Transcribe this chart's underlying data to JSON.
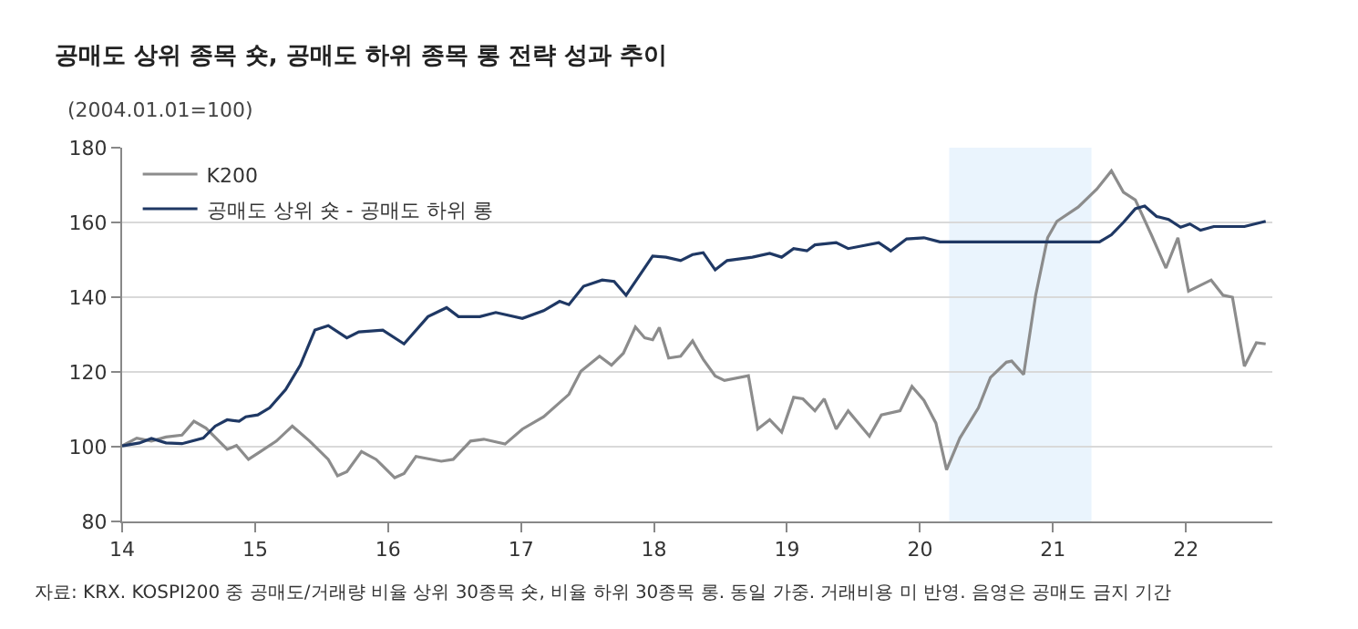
{
  "chart_data": {
    "type": "line",
    "title": "공매도 상위 종목 숏, 공매도 하위 종목 롱 전략 성과 추이",
    "subtitle": "(2004.01.01=100)",
    "annotations": [
      "자료: KRX. KOSPI200 중 공매도/거래량 비율 상위 30종목 숏, 비율 하위 30종목 롱. 동일 가중. 거래비용 미 반영. 음영은 공매도 금지 기간"
    ],
    "series": [
      {
        "name": "K200",
        "color": "#8c8c8c",
        "x": [
          14.0,
          14.11,
          14.22,
          14.33,
          14.45,
          14.54,
          14.63,
          14.79,
          14.86,
          14.95,
          15.04,
          15.16,
          15.28,
          15.41,
          15.55,
          15.62,
          15.69,
          15.8,
          15.91,
          16.05,
          16.12,
          16.21,
          16.4,
          16.49,
          16.62,
          16.72,
          16.88,
          17.01,
          17.17,
          17.36,
          17.45,
          17.59,
          17.68,
          17.77,
          17.86,
          17.93,
          17.99,
          18.04,
          18.11,
          18.2,
          18.29,
          18.37,
          18.46,
          18.53,
          18.71,
          18.78,
          18.87,
          18.96,
          19.05,
          19.12,
          19.21,
          19.28,
          19.37,
          19.46,
          19.62,
          19.71,
          19.85,
          19.94,
          20.03,
          20.12,
          20.2,
          20.3,
          20.44,
          20.53,
          20.65,
          20.69,
          20.78,
          20.87,
          20.96,
          21.03,
          21.19,
          21.33,
          21.44,
          21.53,
          21.62,
          21.74,
          21.85,
          21.94,
          22.02,
          22.19,
          22.28,
          22.35,
          22.44,
          22.53,
          22.6
        ],
        "values": [
          100.2,
          102.3,
          101.5,
          102.6,
          103.1,
          106.8,
          105,
          99.3,
          100.3,
          96.6,
          98.7,
          101.5,
          105.5,
          101.5,
          96.6,
          92.2,
          93.3,
          98.7,
          96.6,
          91.7,
          92.8,
          97.4,
          96.1,
          96.6,
          101.5,
          102,
          100.7,
          104.7,
          108,
          114,
          120.2,
          124.2,
          121.8,
          125,
          132,
          129.1,
          128.6,
          131.9,
          123.7,
          124.2,
          128.3,
          123.4,
          118.9,
          117.7,
          119,
          104.7,
          107.2,
          103.9,
          113.2,
          112.8,
          109.6,
          112.8,
          104.7,
          109.6,
          102.8,
          108.5,
          109.6,
          116.1,
          112.4,
          106.3,
          93.8,
          102.3,
          110.4,
          118.5,
          122.6,
          122.9,
          119.3,
          140.5,
          155.9,
          160.3,
          164.1,
          168.9,
          173.8,
          168.1,
          166,
          156.7,
          147.8,
          155.9,
          141.6,
          144.6,
          140.5,
          140,
          121.5,
          127.8,
          127.5
        ]
      },
      {
        "name": "공매도 상위 숏 - 공매도 하위 롱",
        "color": "#1f3864",
        "x": [
          14.0,
          14.13,
          14.22,
          14.33,
          14.45,
          14.61,
          14.7,
          14.79,
          14.88,
          14.93,
          15.02,
          15.11,
          15.23,
          15.34,
          15.45,
          15.55,
          15.69,
          15.78,
          15.96,
          16.12,
          16.3,
          16.44,
          16.53,
          16.69,
          16.81,
          17.01,
          17.17,
          17.29,
          17.36,
          17.47,
          17.61,
          17.7,
          17.79,
          17.99,
          18.09,
          18.2,
          18.29,
          18.37,
          18.46,
          18.55,
          18.74,
          18.87,
          18.96,
          19.05,
          19.15,
          19.21,
          19.37,
          19.46,
          19.69,
          19.78,
          19.9,
          20.03,
          20.15,
          21.35,
          21.44,
          21.53,
          21.62,
          21.69,
          21.78,
          21.87,
          21.96,
          22.03,
          22.11,
          22.21,
          22.44,
          22.6
        ],
        "values": [
          100.2,
          101,
          102.2,
          101,
          100.8,
          102.3,
          105.5,
          107.2,
          106.8,
          108,
          108.5,
          110.4,
          115.3,
          121.8,
          131.2,
          132.4,
          129.1,
          130.7,
          131.2,
          127.5,
          134.8,
          137.2,
          134.8,
          134.8,
          135.9,
          134.3,
          136.4,
          138.9,
          138,
          142.9,
          144.6,
          144.2,
          140.5,
          151,
          150.7,
          149.8,
          151.4,
          151.9,
          147.3,
          149.8,
          150.7,
          151.7,
          150.7,
          153,
          152.4,
          154,
          154.6,
          153,
          154.6,
          152.4,
          155.6,
          155.9,
          154.8,
          154.8,
          156.7,
          160,
          163.7,
          164.4,
          161.6,
          160.8,
          158.7,
          159.6,
          157.9,
          158.9,
          158.9,
          160.3
        ]
      }
    ],
    "bands": [
      {
        "axis": "x",
        "from": 20.22,
        "to": 21.29,
        "color": "#eaf4fd"
      }
    ],
    "xlim": [
      14,
      22.65
    ],
    "xticks": [
      14,
      15,
      16,
      17,
      18,
      19,
      20,
      21,
      22
    ],
    "ylim": [
      80,
      180
    ],
    "yticks": [
      80,
      100,
      120,
      140,
      160,
      180
    ],
    "grid": "y",
    "legend": "top left",
    "marker": "none",
    "line_style": "solid"
  }
}
